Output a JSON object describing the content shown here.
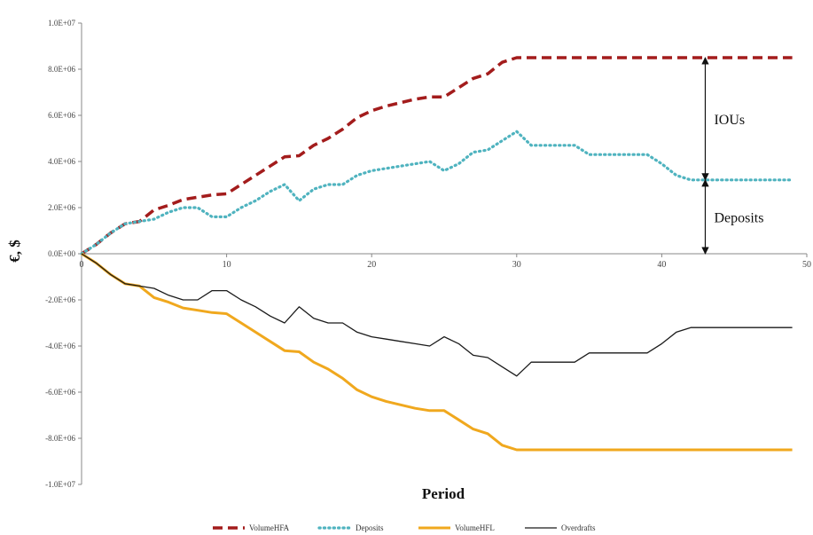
{
  "chart_data": {
    "type": "line",
    "xlabel": "Period",
    "ylabel": "€, $",
    "xlim": [
      0,
      50
    ],
    "ylim": [
      -10000000,
      10000000
    ],
    "x_ticks": [
      0,
      10,
      20,
      30,
      40,
      50
    ],
    "x_tick_labels": [
      "0",
      "10",
      "20",
      "30",
      "40",
      "50"
    ],
    "y_ticks": [
      10000000,
      8000000,
      6000000,
      4000000,
      2000000,
      0,
      -2000000,
      -4000000,
      -6000000,
      -8000000,
      -10000000
    ],
    "y_tick_labels": [
      "1.0E+07",
      "8.0E+06",
      "6.0E+06",
      "4.0E+06",
      "2.0E+06",
      "0.0E+00",
      "-2.0E+06",
      "-4.0E+06",
      "-6.0E+06",
      "-8.0E+06",
      "-1.0E+07"
    ],
    "grid": false,
    "legend_position": "bottom",
    "series": [
      {
        "name": "VolumeHFA",
        "color": "#a31c1c",
        "style": "dashed",
        "x": [
          0,
          1,
          2,
          3,
          4,
          5,
          6,
          7,
          8,
          9,
          10,
          11,
          12,
          13,
          14,
          15,
          16,
          17,
          18,
          19,
          20,
          21,
          22,
          23,
          24,
          25,
          26,
          27,
          28,
          29,
          30,
          31,
          32,
          33,
          34,
          35,
          36,
          37,
          38,
          39,
          40,
          41,
          42,
          43,
          44,
          45,
          46,
          47,
          48,
          49
        ],
        "y": [
          0,
          400000,
          900000,
          1300000,
          1400000,
          1900000,
          2100000,
          2350000,
          2450000,
          2550000,
          2600000,
          3000000,
          3400000,
          3800000,
          4200000,
          4250000,
          4700000,
          5000000,
          5400000,
          5900000,
          6200000,
          6400000,
          6550000,
          6700000,
          6800000,
          6800000,
          7200000,
          7600000,
          7800000,
          8300000,
          8500000,
          8500000,
          8500000,
          8500000,
          8500000,
          8500000,
          8500000,
          8500000,
          8500000,
          8500000,
          8500000,
          8500000,
          8500000,
          8500000,
          8500000,
          8500000,
          8500000,
          8500000,
          8500000,
          8500000
        ]
      },
      {
        "name": "Deposits",
        "color": "#4fb3bf",
        "style": "dotted",
        "x": [
          0,
          1,
          2,
          3,
          4,
          5,
          6,
          7,
          8,
          9,
          10,
          11,
          12,
          13,
          14,
          15,
          16,
          17,
          18,
          19,
          20,
          21,
          22,
          23,
          24,
          25,
          26,
          27,
          28,
          29,
          30,
          31,
          32,
          33,
          34,
          35,
          36,
          37,
          38,
          39,
          40,
          41,
          42,
          43,
          44,
          45,
          46,
          47,
          48,
          49
        ],
        "y": [
          0,
          400000,
          900000,
          1300000,
          1400000,
          1500000,
          1800000,
          2000000,
          2000000,
          1600000,
          1600000,
          2000000,
          2300000,
          2700000,
          3000000,
          2300000,
          2800000,
          3000000,
          3000000,
          3400000,
          3600000,
          3700000,
          3800000,
          3900000,
          4000000,
          3600000,
          3900000,
          4400000,
          4500000,
          4900000,
          5300000,
          4700000,
          4700000,
          4700000,
          4700000,
          4300000,
          4300000,
          4300000,
          4300000,
          4300000,
          3900000,
          3400000,
          3200000,
          3200000,
          3200000,
          3200000,
          3200000,
          3200000,
          3200000,
          3200000
        ]
      },
      {
        "name": "VolumeHFL",
        "color": "#f0a81e",
        "style": "solid",
        "x": [
          0,
          1,
          2,
          3,
          4,
          5,
          6,
          7,
          8,
          9,
          10,
          11,
          12,
          13,
          14,
          15,
          16,
          17,
          18,
          19,
          20,
          21,
          22,
          23,
          24,
          25,
          26,
          27,
          28,
          29,
          30,
          31,
          32,
          33,
          34,
          35,
          36,
          37,
          38,
          39,
          40,
          41,
          42,
          43,
          44,
          45,
          46,
          47,
          48,
          49
        ],
        "y": [
          0,
          -400000,
          -900000,
          -1300000,
          -1400000,
          -1900000,
          -2100000,
          -2350000,
          -2450000,
          -2550000,
          -2600000,
          -3000000,
          -3400000,
          -3800000,
          -4200000,
          -4250000,
          -4700000,
          -5000000,
          -5400000,
          -5900000,
          -6200000,
          -6400000,
          -6550000,
          -6700000,
          -6800000,
          -6800000,
          -7200000,
          -7600000,
          -7800000,
          -8300000,
          -8500000,
          -8500000,
          -8500000,
          -8500000,
          -8500000,
          -8500000,
          -8500000,
          -8500000,
          -8500000,
          -8500000,
          -8500000,
          -8500000,
          -8500000,
          -8500000,
          -8500000,
          -8500000,
          -8500000,
          -8500000,
          -8500000,
          -8500000
        ]
      },
      {
        "name": "Overdrafts",
        "color": "#1a1a1a",
        "style": "solid",
        "x": [
          0,
          1,
          2,
          3,
          4,
          5,
          6,
          7,
          8,
          9,
          10,
          11,
          12,
          13,
          14,
          15,
          16,
          17,
          18,
          19,
          20,
          21,
          22,
          23,
          24,
          25,
          26,
          27,
          28,
          29,
          30,
          31,
          32,
          33,
          34,
          35,
          36,
          37,
          38,
          39,
          40,
          41,
          42,
          43,
          44,
          45,
          46,
          47,
          48,
          49
        ],
        "y": [
          0,
          -400000,
          -900000,
          -1300000,
          -1400000,
          -1500000,
          -1800000,
          -2000000,
          -2000000,
          -1600000,
          -1600000,
          -2000000,
          -2300000,
          -2700000,
          -3000000,
          -2300000,
          -2800000,
          -3000000,
          -3000000,
          -3400000,
          -3600000,
          -3700000,
          -3800000,
          -3900000,
          -4000000,
          -3600000,
          -3900000,
          -4400000,
          -4500000,
          -4900000,
          -5300000,
          -4700000,
          -4700000,
          -4700000,
          -4700000,
          -4300000,
          -4300000,
          -4300000,
          -4300000,
          -4300000,
          -3900000,
          -3400000,
          -3200000,
          -3200000,
          -3200000,
          -3200000,
          -3200000,
          -3200000,
          -3200000,
          -3200000
        ]
      }
    ],
    "annotations": [
      {
        "text": "IOUs",
        "x": 43,
        "y_from": 8500000,
        "y_to": 3200000
      },
      {
        "text": "Deposits",
        "x": 43,
        "y_from": 3200000,
        "y_to": 0
      }
    ]
  }
}
